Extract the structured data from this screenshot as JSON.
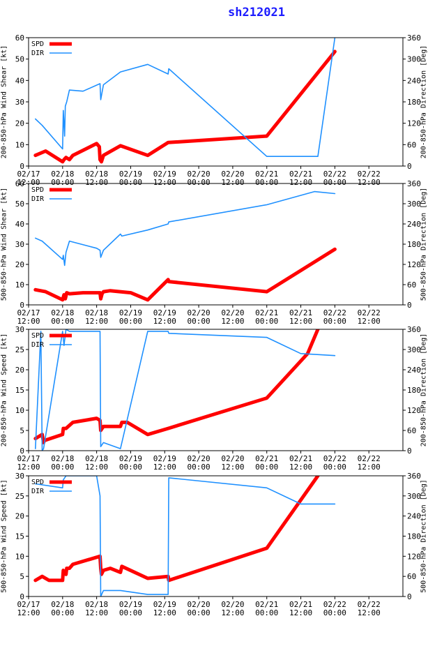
{
  "title": "sh212021",
  "colors": {
    "spd": "#ff0000",
    "dir": "#1e90ff",
    "title": "#1c1cff",
    "axis": "#000000"
  },
  "chart_data": [
    {
      "type": "line",
      "left_label": "200-850-hPa Wind Shear [kt]",
      "right_label": "200-850-hPa Direction [Deg]",
      "xlim": [
        0,
        5.5
      ],
      "ylim": [
        0,
        60
      ],
      "yticks": [
        0,
        10,
        20,
        30,
        40,
        50,
        60
      ],
      "y2lim": [
        0,
        360
      ],
      "y2ticks": [
        0,
        60,
        120,
        180,
        240,
        300,
        360
      ],
      "xticks_top": [
        "02/17",
        "02/18",
        "02/18",
        "02/19",
        "02/19",
        "02/20",
        "02/20",
        "02/21",
        "02/21",
        "02/22",
        "02/22"
      ],
      "xticks_bottom": [
        "12:00",
        "00:00",
        "12:00",
        "00:00",
        "12:00",
        "00:00",
        "12:00",
        "00:00",
        "12:00",
        "00:00",
        "12:00"
      ],
      "legend": [
        "SPD",
        "DIR"
      ],
      "series": [
        {
          "name": "SPD",
          "axis": "left",
          "x": [
            0.1,
            0.25,
            0.5,
            0.52,
            0.55,
            0.6,
            0.65,
            1.0,
            1.04,
            1.05,
            1.07,
            1.1,
            1.35,
            1.75,
            2.05,
            3.5,
            4.5
          ],
          "y": [
            5,
            7,
            2,
            3,
            4,
            3,
            5,
            10.5,
            9,
            3,
            2,
            5,
            9.5,
            5,
            11,
            14,
            53.5
          ]
        },
        {
          "name": "DIR",
          "axis": "left",
          "x": [
            0.1,
            0.2,
            0.5,
            0.51,
            0.53,
            0.54,
            0.56,
            0.6,
            0.8,
            1.05,
            1.06,
            1.1,
            1.35,
            1.75,
            2.05,
            2.06,
            3.5,
            4.25,
            4.5
          ],
          "y": [
            22,
            19,
            8,
            26,
            14,
            28,
            30,
            35.5,
            35,
            38.5,
            31,
            38,
            44,
            47.5,
            43,
            45.5,
            4.5,
            4.5,
            60
          ]
        }
      ]
    },
    {
      "type": "line",
      "left_label": "500-850-hPa Wind Shear [kt]",
      "right_label": "500-850-hPa Direction [Deg]",
      "xlim": [
        0,
        5.5
      ],
      "ylim": [
        0,
        60
      ],
      "yticks": [
        0,
        10,
        20,
        30,
        40,
        50,
        60
      ],
      "y2lim": [
        0,
        360
      ],
      "y2ticks": [
        0,
        60,
        120,
        180,
        240,
        300,
        360
      ],
      "xticks_top": [
        "02/17",
        "02/18",
        "02/18",
        "02/19",
        "02/19",
        "02/20",
        "02/20",
        "02/21",
        "02/21",
        "02/22",
        "02/22"
      ],
      "xticks_bottom": [
        "12:00",
        "00:00",
        "12:00",
        "00:00",
        "12:00",
        "00:00",
        "12:00",
        "00:00",
        "12:00",
        "00:00",
        "12:00"
      ],
      "legend": [
        "SPD",
        "DIR"
      ],
      "series": [
        {
          "name": "SPD",
          "axis": "left",
          "x": [
            0.1,
            0.25,
            0.5,
            0.52,
            0.54,
            0.56,
            0.6,
            0.8,
            1.05,
            1.06,
            1.08,
            1.1,
            1.2,
            1.5,
            1.75,
            2.05,
            2.06,
            3.5,
            4.5
          ],
          "y": [
            7.5,
            6.5,
            2.5,
            5,
            3,
            6,
            5.5,
            6,
            6,
            3,
            5.5,
            6.5,
            7,
            6,
            2.5,
            12.5,
            11.5,
            6.5,
            27.5
          ]
        },
        {
          "name": "DIR",
          "axis": "left",
          "x": [
            0.1,
            0.2,
            0.5,
            0.51,
            0.53,
            0.55,
            0.6,
            1.0,
            1.05,
            1.06,
            1.1,
            1.35,
            1.37,
            1.75,
            2.05,
            2.06,
            3.5,
            4.2,
            4.5
          ],
          "y": [
            33,
            31.5,
            22.5,
            24.5,
            19.5,
            26,
            31.5,
            28,
            27,
            23.5,
            27,
            35,
            34,
            37,
            40,
            41,
            49.5,
            56,
            55
          ]
        }
      ]
    },
    {
      "type": "line",
      "left_label": "200-850-hPa Wind Speed [kt]",
      "right_label": "200-850-hPa Direction [Deg]",
      "xlim": [
        0,
        5.5
      ],
      "ylim": [
        0,
        30
      ],
      "yticks": [
        0,
        5,
        10,
        15,
        20,
        25,
        30
      ],
      "y2lim": [
        0,
        360
      ],
      "y2ticks": [
        0,
        60,
        120,
        180,
        240,
        300,
        360
      ],
      "xticks_top": [
        "02/17",
        "02/18",
        "02/18",
        "02/19",
        "02/19",
        "02/20",
        "02/20",
        "02/21",
        "02/21",
        "02/22",
        "02/22"
      ],
      "xticks_bottom": [
        "12:00",
        "00:00",
        "12:00",
        "00:00",
        "12:00",
        "00:00",
        "12:00",
        "00:00",
        "12:00",
        "00:00",
        "12:00"
      ],
      "legend": [
        "SPD",
        "DIR"
      ],
      "series": [
        {
          "name": "SPD",
          "axis": "left",
          "x": [
            0.1,
            0.2,
            0.22,
            0.23,
            0.5,
            0.51,
            0.55,
            0.65,
            1.0,
            1.05,
            1.06,
            1.1,
            1.35,
            1.37,
            1.45,
            1.75,
            2.05,
            3.5,
            4.1,
            4.25
          ],
          "y": [
            3,
            4,
            2,
            2.5,
            4,
            5.5,
            5.5,
            7,
            8,
            7.5,
            5,
            6,
            6,
            7,
            7,
            4,
            5.5,
            13,
            24,
            30
          ]
        },
        {
          "name": "DIR",
          "axis": "left",
          "x": [
            0.1,
            0.18,
            0.2,
            0.22,
            0.5,
            0.52,
            0.55,
            0.6,
            1.05,
            1.06,
            1.1,
            1.35,
            1.75,
            1.8,
            2.05,
            2.06,
            3.5,
            4.0,
            4.5
          ],
          "y": [
            0.5,
            29.5,
            0,
            0.5,
            29.5,
            26,
            30,
            29.5,
            29.5,
            1,
            2,
            0.5,
            29.5,
            29.5,
            29.5,
            29,
            28,
            24,
            23.5
          ]
        }
      ]
    },
    {
      "type": "line",
      "left_label": "500-850-hPa Wind Speed [kt]",
      "right_label": "500-850-hPa Direction [Deg]",
      "xlim": [
        0,
        5.5
      ],
      "ylim": [
        0,
        30
      ],
      "yticks": [
        0,
        5,
        10,
        15,
        20,
        25,
        30
      ],
      "y2lim": [
        0,
        360
      ],
      "y2ticks": [
        0,
        60,
        120,
        180,
        240,
        300,
        360
      ],
      "xticks_top": [
        "02/17",
        "02/18",
        "02/18",
        "02/19",
        "02/19",
        "02/20",
        "02/20",
        "02/21",
        "02/21",
        "02/22",
        "02/22"
      ],
      "xticks_bottom": [
        "12:00",
        "00:00",
        "12:00",
        "00:00",
        "12:00",
        "00:00",
        "12:00",
        "00:00",
        "12:00",
        "00:00",
        "12:00"
      ],
      "legend": [
        "SPD",
        "DIR"
      ],
      "series": [
        {
          "name": "SPD",
          "axis": "left",
          "x": [
            0.1,
            0.2,
            0.3,
            0.5,
            0.51,
            0.55,
            0.56,
            0.6,
            0.65,
            1.05,
            1.06,
            1.07,
            1.1,
            1.2,
            1.35,
            1.37,
            1.75,
            2.05,
            2.06,
            3.5,
            4.25
          ],
          "y": [
            4,
            5,
            4,
            4,
            6.5,
            5.5,
            7,
            7,
            8,
            10,
            7,
            5.5,
            6.5,
            7,
            6,
            7.5,
            4.5,
            5,
            4,
            12,
            30
          ]
        },
        {
          "name": "DIR",
          "axis": "left",
          "x": [
            0.1,
            0.5,
            0.51,
            0.55,
            1.0,
            1.05,
            1.06,
            1.1,
            1.35,
            1.75,
            2.05,
            2.06,
            3.5,
            4.0,
            4.5
          ],
          "y": [
            28,
            27,
            29,
            30,
            30,
            25,
            0,
            1.5,
            1.5,
            0.5,
            0.5,
            29.5,
            27,
            23,
            23
          ]
        }
      ]
    }
  ]
}
